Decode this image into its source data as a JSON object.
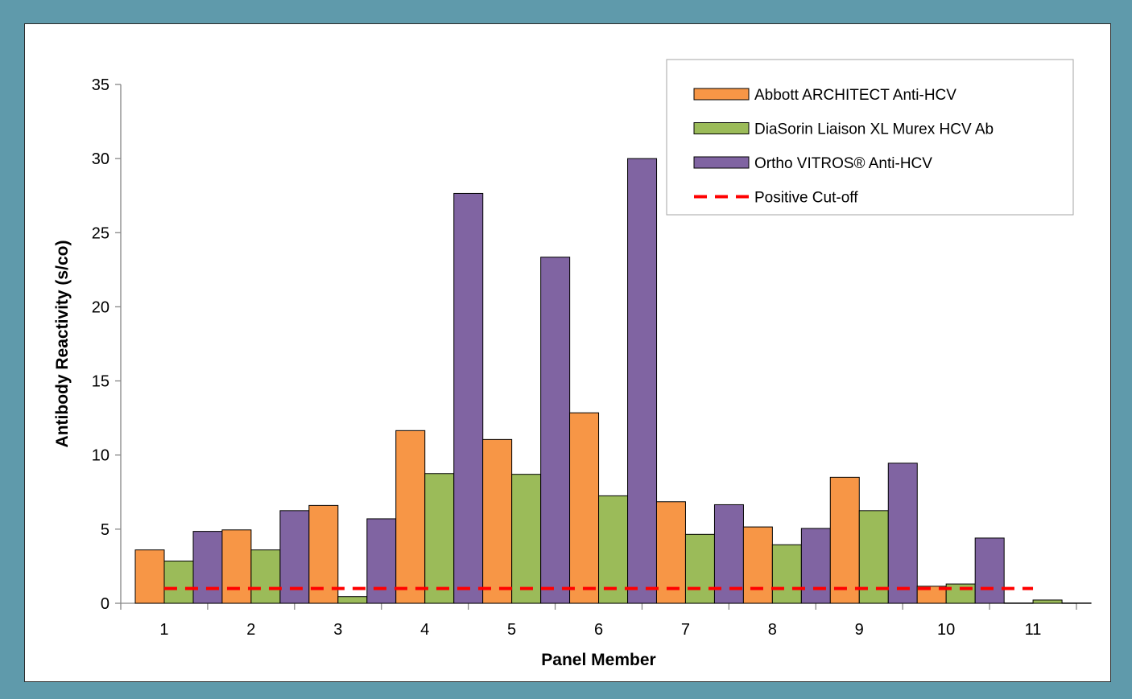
{
  "chart_data": {
    "type": "bar",
    "title": "",
    "xlabel": "Panel Member",
    "ylabel": "Antibody Reactivity (s/co)",
    "ylim": [
      0,
      35
    ],
    "yticks": [
      0,
      5,
      10,
      15,
      20,
      25,
      30,
      35
    ],
    "categories": [
      "1",
      "2",
      "3",
      "4",
      "5",
      "6",
      "7",
      "8",
      "9",
      "10",
      "11"
    ],
    "series": [
      {
        "name": "Abbott ARCHITECT Anti-HCV",
        "color": "#f79646",
        "values": [
          3.6,
          4.95,
          6.6,
          11.65,
          11.05,
          12.85,
          6.85,
          5.15,
          8.5,
          1.15,
          0.02
        ]
      },
      {
        "name": "DiaSorin Liaison XL Murex HCV Ab",
        "color": "#9bbb59",
        "values": [
          2.85,
          3.6,
          0.45,
          8.75,
          8.7,
          7.25,
          4.65,
          3.95,
          6.25,
          1.3,
          0.22
        ]
      },
      {
        "name": "Ortho VITROS® Anti-HCV",
        "color": "#8064a2",
        "values": [
          4.85,
          6.25,
          5.7,
          27.65,
          23.35,
          30.0,
          6.65,
          5.05,
          9.45,
          4.4,
          0.02
        ]
      }
    ],
    "reference_line": {
      "name": "Positive Cut-off",
      "value": 1.0,
      "color": "#ff0000",
      "style": "dashed"
    },
    "legend_position": "top-right",
    "grid": false
  }
}
